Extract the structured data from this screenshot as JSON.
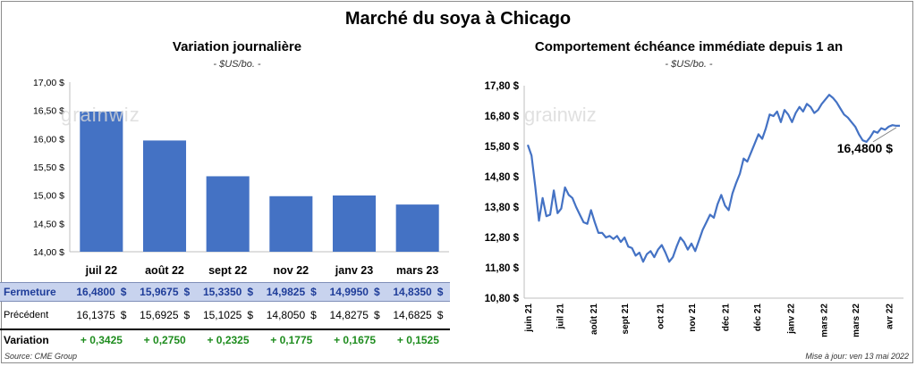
{
  "header": {
    "title": "Marché du soya à Chicago"
  },
  "left_panel": {
    "title": "Variation journalière",
    "unit": "- $US/bo. -"
  },
  "right_panel": {
    "title": "Comportement échéance immédiate depuis 1 an",
    "unit": "- $US/bo. -",
    "last_value_label": "16,4800 $"
  },
  "watermark": "grainwiz",
  "colors": {
    "bar": "#4472c4",
    "line": "#4472c4",
    "close_row_bg": "#c8d3ee",
    "variation_text": "#1e8c1e"
  },
  "table": {
    "row_labels": {
      "close": "Fermeture",
      "previous": "Précédent",
      "variation": "Variation"
    },
    "currency": "$",
    "close": [
      "16,4800",
      "15,9675",
      "15,3350",
      "14,9825",
      "14,9950",
      "14,8350"
    ],
    "previous": [
      "16,1375",
      "15,6925",
      "15,1025",
      "14,8050",
      "14,8275",
      "14,6825"
    ],
    "variation": [
      "+ 0,3425",
      "+ 0,2750",
      "+ 0,2325",
      "+ 0,1775",
      "+ 0,1675",
      "+ 0,1525"
    ]
  },
  "footer": {
    "source": "Source: CME Group",
    "updated": "Mise à jour: ven 13 mai 2022"
  },
  "chart_data": [
    {
      "type": "bar",
      "title": "Variation journalière",
      "ylabel": "- $US/bo. -",
      "categories": [
        "juil 22",
        "août 22",
        "sept 22",
        "nov 22",
        "janv 23",
        "mars 23"
      ],
      "values": [
        16.48,
        15.9675,
        15.335,
        14.9825,
        14.995,
        14.835
      ],
      "ylim": [
        14.0,
        17.0
      ],
      "yticks": [
        "17,00 $",
        "16,50 $",
        "16,00 $",
        "15,50 $",
        "15,00 $",
        "14,50 $",
        "14,00 $"
      ],
      "grid": false
    },
    {
      "type": "line",
      "title": "Comportement échéance immédiate depuis 1 an",
      "ylabel": "- $US/bo. -",
      "ylim": [
        10.8,
        17.8
      ],
      "yticks": [
        "17,80 $",
        "16,80 $",
        "15,80 $",
        "14,80 $",
        "13,80 $",
        "12,80 $",
        "11,80 $",
        "10,80 $"
      ],
      "xticks": [
        "juin 21",
        "juil 21",
        "août 21",
        "sept 21",
        "oct 21",
        "nov 21",
        "déc 21",
        "déc 21",
        "janv 22",
        "mars 22",
        "mars 22",
        "avr 22"
      ],
      "x_position_of_xticks": [
        0,
        8.5,
        17.5,
        26,
        35.5,
        44,
        53,
        61.5,
        70.5,
        79.5,
        88,
        97
      ],
      "x": [
        0,
        1,
        2,
        3,
        4,
        5,
        6,
        7,
        8,
        9,
        10,
        11,
        12,
        13,
        14,
        15,
        16,
        17,
        18,
        19,
        20,
        21,
        22,
        23,
        24,
        25,
        26,
        27,
        28,
        29,
        30,
        31,
        32,
        33,
        34,
        35,
        36,
        37,
        38,
        39,
        40,
        41,
        42,
        43,
        44,
        45,
        46,
        47,
        48,
        49,
        50,
        51,
        52,
        53,
        54,
        55,
        56,
        57,
        58,
        59,
        60,
        61,
        62,
        63,
        64,
        65,
        66,
        67,
        68,
        69,
        70,
        71,
        72,
        73,
        74,
        75,
        76,
        77,
        78,
        79,
        80,
        81,
        82,
        83,
        84,
        85,
        86,
        87,
        88,
        89,
        90,
        91,
        92,
        93,
        94,
        95,
        96,
        97,
        98,
        99,
        100
      ],
      "values": [
        15.85,
        15.5,
        14.5,
        13.35,
        14.1,
        13.5,
        13.55,
        14.35,
        13.6,
        13.75,
        14.45,
        14.2,
        14.1,
        13.8,
        13.55,
        13.3,
        13.25,
        13.7,
        13.3,
        12.95,
        12.95,
        12.8,
        12.85,
        12.75,
        12.85,
        12.65,
        12.8,
        12.5,
        12.45,
        12.2,
        12.3,
        12.0,
        12.25,
        12.35,
        12.15,
        12.4,
        12.55,
        12.3,
        12.0,
        12.15,
        12.5,
        12.8,
        12.65,
        12.4,
        12.6,
        12.35,
        12.7,
        13.05,
        13.3,
        13.55,
        13.45,
        13.9,
        14.2,
        13.85,
        13.7,
        14.25,
        14.6,
        14.9,
        15.4,
        15.3,
        15.6,
        15.9,
        16.2,
        16.05,
        16.4,
        16.85,
        16.8,
        16.95,
        16.6,
        17.0,
        16.85,
        16.6,
        16.9,
        17.1,
        16.95,
        17.2,
        17.1,
        16.9,
        17.0,
        17.2,
        17.35,
        17.5,
        17.4,
        17.25,
        17.05,
        16.85,
        16.75,
        16.6,
        16.45,
        16.2,
        16.0,
        15.95,
        16.1,
        16.3,
        16.25,
        16.4,
        16.35,
        16.45,
        16.5,
        16.48,
        16.48
      ],
      "last_value": "16,4800 $",
      "grid": false
    }
  ]
}
